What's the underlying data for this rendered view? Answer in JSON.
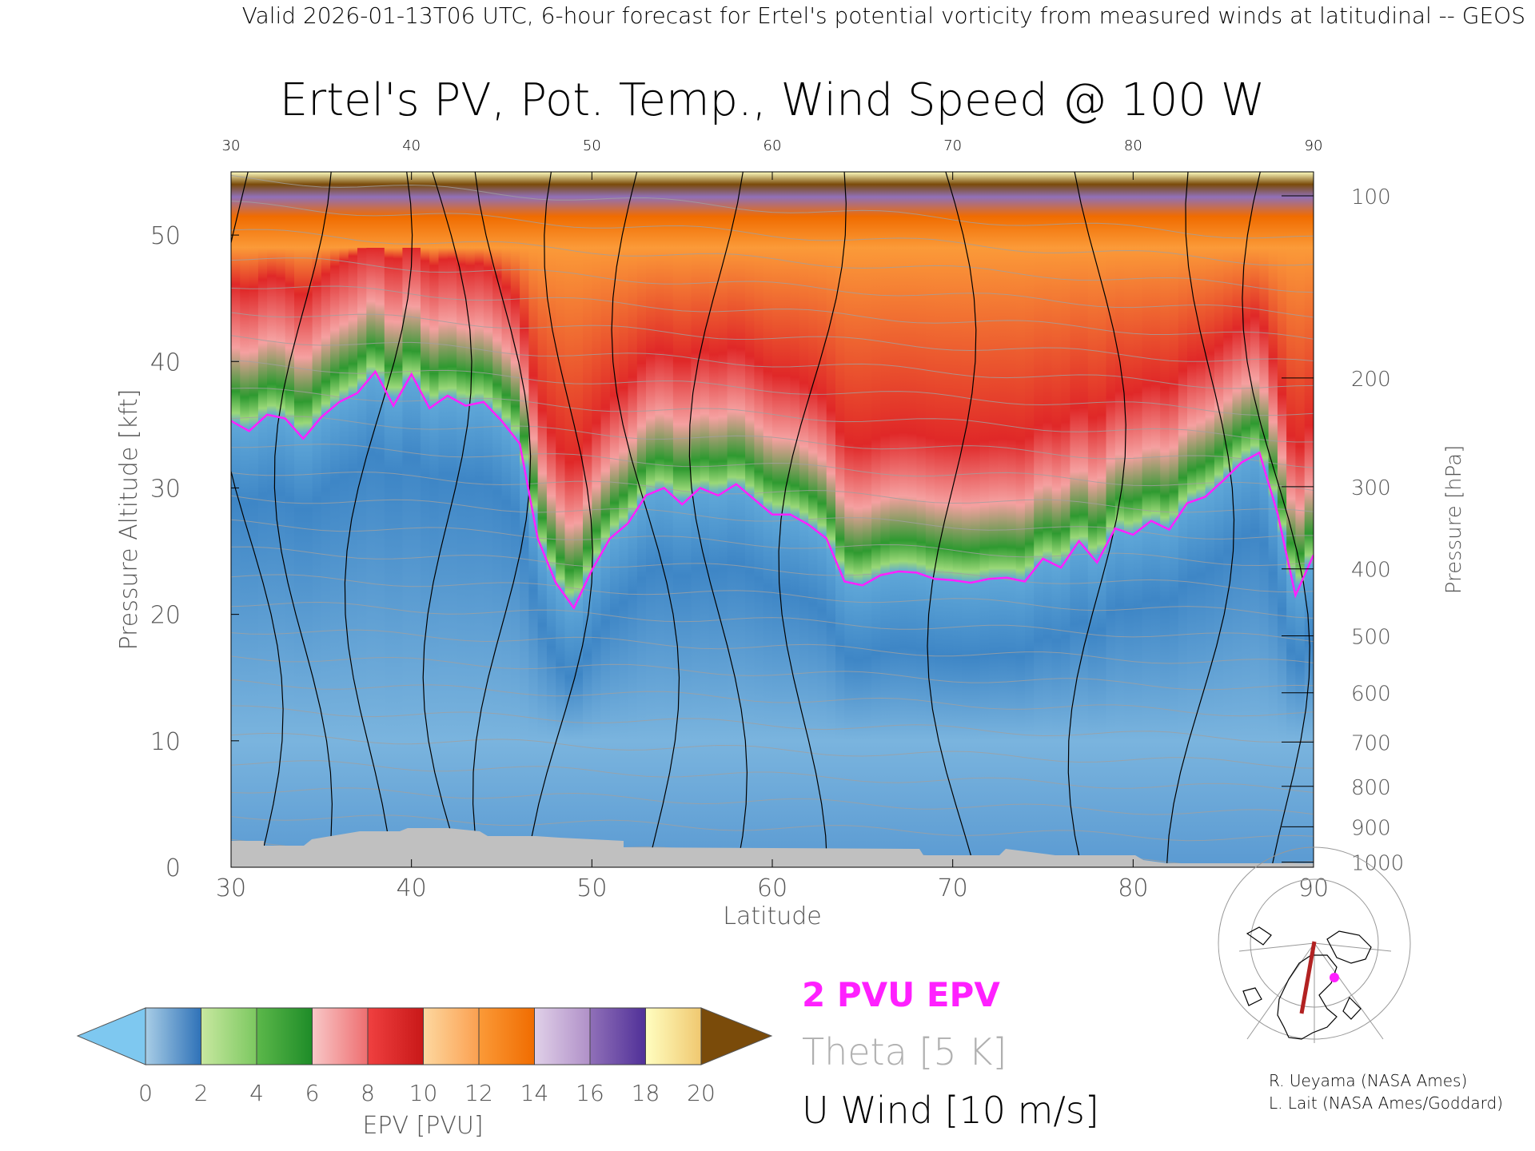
{
  "header": {
    "valid_line": "Valid 2026-01-13T06 UTC, 6-hour forecast for Ertel's potential vorticity from measured winds at latitudinal -- GEOS"
  },
  "chart_data": {
    "type": "heatmap",
    "title": "Ertel's PV, Pot. Temp., Wind Speed @ 100 W",
    "xlabel": "Latitude",
    "ylabel_left": "Pressure Altitude [kft]",
    "ylabel_right": "Pressure [hPa]",
    "xlim": [
      30,
      90
    ],
    "ylim": [
      0,
      55
    ],
    "x_ticks": [
      "30",
      "40",
      "50",
      "60",
      "70",
      "80",
      "90"
    ],
    "y_ticks_left": [
      "0",
      "10",
      "20",
      "30",
      "40",
      "50"
    ],
    "y_ticks_right": [
      {
        "label": "100",
        "kft": 53.1
      },
      {
        "label": "200",
        "kft": 38.7
      },
      {
        "label": "300",
        "kft": 30.1
      },
      {
        "label": "400",
        "kft": 23.6
      },
      {
        "label": "500",
        "kft": 18.3
      },
      {
        "label": "600",
        "kft": 13.8
      },
      {
        "label": "700",
        "kft": 9.9
      },
      {
        "label": "800",
        "kft": 6.4
      },
      {
        "label": "900",
        "kft": 3.2
      },
      {
        "label": "1000",
        "kft": 0.4
      }
    ],
    "colorbar": {
      "label": "EPV [PVU]",
      "ticks": [
        "0",
        "2",
        "4",
        "6",
        "8",
        "10",
        "12",
        "14",
        "16",
        "18",
        "20"
      ],
      "under_color": "#7ec8f0",
      "over_color": "#7a4b0a",
      "segments": [
        {
          "from": 0,
          "to": 2,
          "colors": [
            "#a8cde6",
            "#2f72b8"
          ]
        },
        {
          "from": 2,
          "to": 4,
          "colors": [
            "#c8e8a0",
            "#7cc860"
          ]
        },
        {
          "from": 4,
          "to": 6,
          "colors": [
            "#5cb84a",
            "#1e8c28"
          ]
        },
        {
          "from": 6,
          "to": 8,
          "colors": [
            "#f8c8c8",
            "#ee6e70"
          ]
        },
        {
          "from": 8,
          "to": 10,
          "colors": [
            "#f04040",
            "#c81818"
          ]
        },
        {
          "from": 10,
          "to": 12,
          "colors": [
            "#fdd8a0",
            "#fba050"
          ]
        },
        {
          "from": 12,
          "to": 14,
          "colors": [
            "#fb9a38",
            "#f06c00"
          ]
        },
        {
          "from": 14,
          "to": 16,
          "colors": [
            "#e0d0e8",
            "#b090c8"
          ]
        },
        {
          "from": 16,
          "to": 18,
          "colors": [
            "#9070b8",
            "#503098"
          ]
        },
        {
          "from": 18,
          "to": 20,
          "colors": [
            "#fffec0",
            "#f0c870"
          ]
        }
      ]
    },
    "tropopause_2pvu": [
      [
        30,
        35.3
      ],
      [
        31,
        34.5
      ],
      [
        32,
        35.8
      ],
      [
        33,
        35.5
      ],
      [
        34,
        33.9
      ],
      [
        35,
        35.6
      ],
      [
        36,
        36.8
      ],
      [
        37,
        37.5
      ],
      [
        38,
        39.2
      ],
      [
        39,
        36.5
      ],
      [
        40,
        39
      ],
      [
        41,
        36.3
      ],
      [
        42,
        37.3
      ],
      [
        43,
        36.5
      ],
      [
        44,
        36.8
      ],
      [
        45,
        35.3
      ],
      [
        46,
        33.5
      ],
      [
        47,
        26
      ],
      [
        48,
        22.5
      ],
      [
        49,
        20.5
      ],
      [
        50,
        23.5
      ],
      [
        51,
        26
      ],
      [
        52,
        27.2
      ],
      [
        53,
        29.4
      ],
      [
        54,
        30
      ],
      [
        55,
        28.7
      ],
      [
        56,
        30
      ],
      [
        57,
        29.4
      ],
      [
        58,
        30.3
      ],
      [
        59,
        29.1
      ],
      [
        60,
        27.9
      ],
      [
        61,
        27.9
      ],
      [
        62,
        27.1
      ],
      [
        63,
        26
      ],
      [
        64,
        22.6
      ],
      [
        65,
        22.3
      ],
      [
        66,
        23.1
      ],
      [
        67,
        23.4
      ],
      [
        68,
        23.3
      ],
      [
        69,
        22.8
      ],
      [
        70,
        22.7
      ],
      [
        71,
        22.5
      ],
      [
        72,
        22.8
      ],
      [
        73,
        22.9
      ],
      [
        74,
        22.6
      ],
      [
        75,
        24.4
      ],
      [
        76,
        23.7
      ],
      [
        77,
        25.8
      ],
      [
        78,
        24.1
      ],
      [
        79,
        26.8
      ],
      [
        80,
        26.3
      ],
      [
        81,
        27.4
      ],
      [
        82,
        26.7
      ],
      [
        83,
        28.8
      ],
      [
        84,
        29.3
      ],
      [
        85,
        30.6
      ],
      [
        86,
        32
      ],
      [
        87,
        32.8
      ],
      [
        88,
        28
      ],
      [
        89,
        21.5
      ],
      [
        90,
        24.7
      ]
    ],
    "series": [
      {
        "name": "2 PVU EPV",
        "color": "#ff20ff"
      },
      {
        "name": "Theta [5 K]",
        "color": "#a0a0a0"
      },
      {
        "name": "U Wind [10 m/s]",
        "color": "#000000"
      }
    ]
  },
  "legend": {
    "epv_label": "2 PVU EPV",
    "theta_label": "Theta [5 K]",
    "uwind_label": "U Wind [10 m/s]"
  },
  "credits": {
    "line1": "R. Ueyama (NASA Ames)",
    "line2": "L. Lait (NASA Ames/Goddard)"
  }
}
